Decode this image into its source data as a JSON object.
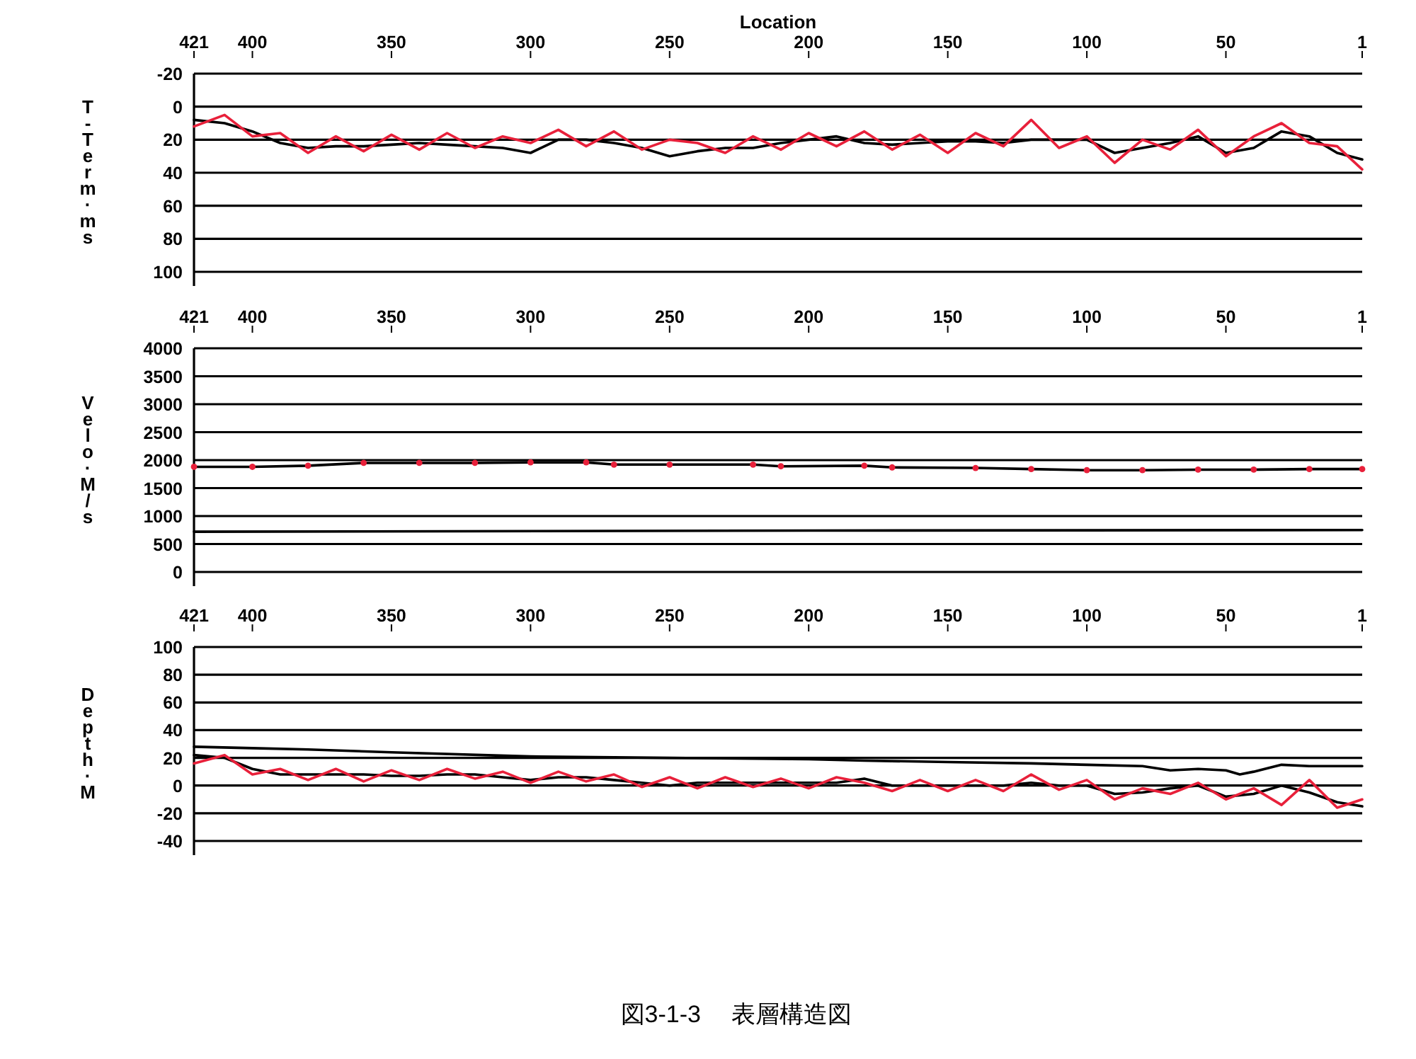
{
  "chart_data": [
    {
      "type": "line",
      "xlabel": "Location",
      "ylabel": "T-Term·ms",
      "x": [
        421,
        410,
        400,
        390,
        380,
        370,
        360,
        350,
        340,
        330,
        320,
        310,
        300,
        290,
        280,
        270,
        260,
        250,
        240,
        230,
        220,
        210,
        200,
        190,
        180,
        170,
        160,
        150,
        140,
        130,
        120,
        110,
        100,
        90,
        80,
        70,
        60,
        50,
        40,
        30,
        20,
        10,
        1
      ],
      "xlim": [
        421,
        1
      ],
      "xticks": [
        421,
        400,
        350,
        300,
        250,
        200,
        150,
        100,
        50,
        1
      ],
      "ylim": [
        100,
        -20
      ],
      "yticks": [
        -20,
        0,
        20,
        40,
        60,
        80,
        100
      ],
      "grid": "y",
      "series": [
        {
          "color": "#000000",
          "values": [
            8,
            10,
            15,
            22,
            25,
            24,
            24,
            23,
            22,
            23,
            24,
            25,
            28,
            20,
            20,
            22,
            25,
            30,
            27,
            25,
            25,
            22,
            20,
            18,
            22,
            23,
            22,
            21,
            21,
            22,
            20,
            20,
            20,
            28,
            25,
            22,
            18,
            28,
            25,
            15,
            18,
            28,
            32
          ]
        },
        {
          "color": "#e8203a",
          "values": [
            12,
            5,
            18,
            16,
            28,
            18,
            27,
            17,
            26,
            16,
            25,
            18,
            22,
            14,
            24,
            15,
            26,
            20,
            22,
            28,
            18,
            26,
            16,
            24,
            15,
            26,
            17,
            28,
            16,
            24,
            8,
            25,
            18,
            34,
            20,
            26,
            14,
            30,
            18,
            10,
            22,
            24,
            38
          ]
        }
      ]
    },
    {
      "type": "line",
      "ylabel": "Velo·M/s",
      "xlim": [
        421,
        1
      ],
      "xticks": [
        421,
        400,
        350,
        300,
        250,
        200,
        150,
        100,
        50,
        1
      ],
      "ylim": [
        0,
        4000
      ],
      "yticks": [
        0,
        500,
        1000,
        1500,
        2000,
        2500,
        3000,
        3500,
        4000
      ],
      "grid": "y",
      "series": [
        {
          "color": "#000000",
          "x": [
            421,
            400,
            380,
            360,
            340,
            320,
            300,
            280,
            270,
            250,
            220,
            210,
            180,
            170,
            140,
            120,
            100,
            80,
            60,
            40,
            20,
            1
          ],
          "values": [
            1880,
            1880,
            1900,
            1950,
            1950,
            1950,
            1960,
            1960,
            1920,
            1920,
            1920,
            1890,
            1900,
            1870,
            1860,
            1840,
            1820,
            1820,
            1830,
            1830,
            1840,
            1840
          ]
        },
        {
          "type": "scatter",
          "marker": "circle",
          "color": "#e8203a",
          "x": [
            421,
            400,
            380,
            360,
            340,
            320,
            300,
            280,
            270,
            250,
            220,
            210,
            180,
            170,
            140,
            120,
            100,
            80,
            60,
            40,
            20,
            1
          ],
          "values": [
            1880,
            1880,
            1900,
            1950,
            1950,
            1950,
            1960,
            1960,
            1920,
            1920,
            1920,
            1890,
            1900,
            1870,
            1860,
            1840,
            1820,
            1820,
            1830,
            1830,
            1840,
            1840
          ]
        },
        {
          "color": "#000000",
          "x": [
            421,
            200,
            1
          ],
          "values": [
            720,
            740,
            750
          ]
        }
      ]
    },
    {
      "type": "line",
      "ylabel": "Depth·M",
      "x": [
        421,
        410,
        400,
        390,
        380,
        370,
        360,
        350,
        340,
        330,
        320,
        310,
        300,
        290,
        280,
        270,
        260,
        250,
        240,
        230,
        220,
        210,
        200,
        190,
        180,
        170,
        160,
        150,
        140,
        130,
        120,
        110,
        100,
        90,
        80,
        70,
        60,
        50,
        40,
        30,
        20,
        10,
        1
      ],
      "xlim": [
        421,
        1
      ],
      "xticks": [
        421,
        400,
        350,
        300,
        250,
        200,
        150,
        100,
        50,
        1
      ],
      "ylim": [
        -40,
        100
      ],
      "yticks": [
        -40,
        -20,
        0,
        20,
        40,
        60,
        80,
        100
      ],
      "grid": "y",
      "annotations": [
        "図3-1-3　 表層構造図"
      ],
      "series": [
        {
          "color": "#000000",
          "values": [
            22,
            20,
            12,
            8,
            8,
            8,
            8,
            7,
            7,
            8,
            8,
            6,
            4,
            6,
            6,
            4,
            2,
            0,
            2,
            2,
            2,
            2,
            2,
            2,
            5,
            0,
            0,
            0,
            0,
            0,
            2,
            0,
            0,
            -6,
            -5,
            -2,
            0,
            -8,
            -6,
            0,
            -5,
            -12,
            -15
          ]
        },
        {
          "color": "#e8203a",
          "values": [
            16,
            22,
            8,
            12,
            4,
            12,
            3,
            11,
            4,
            12,
            5,
            10,
            2,
            10,
            3,
            8,
            -1,
            6,
            -2,
            6,
            -1,
            5,
            -2,
            6,
            2,
            -4,
            4,
            -4,
            4,
            -4,
            8,
            -3,
            4,
            -10,
            -2,
            -6,
            2,
            -10,
            -2,
            -14,
            4,
            -16,
            -10
          ]
        },
        {
          "color": "#000000",
          "x": [
            421,
            400,
            380,
            350,
            300,
            250,
            200,
            180,
            150,
            120,
            100,
            80,
            70,
            60,
            50,
            45,
            40,
            30,
            20,
            10,
            1
          ],
          "values": [
            28,
            27,
            26,
            24,
            21,
            20,
            19,
            18,
            17,
            16,
            15,
            14,
            11,
            12,
            11,
            8,
            10,
            15,
            14,
            14,
            14
          ]
        }
      ]
    }
  ]
}
